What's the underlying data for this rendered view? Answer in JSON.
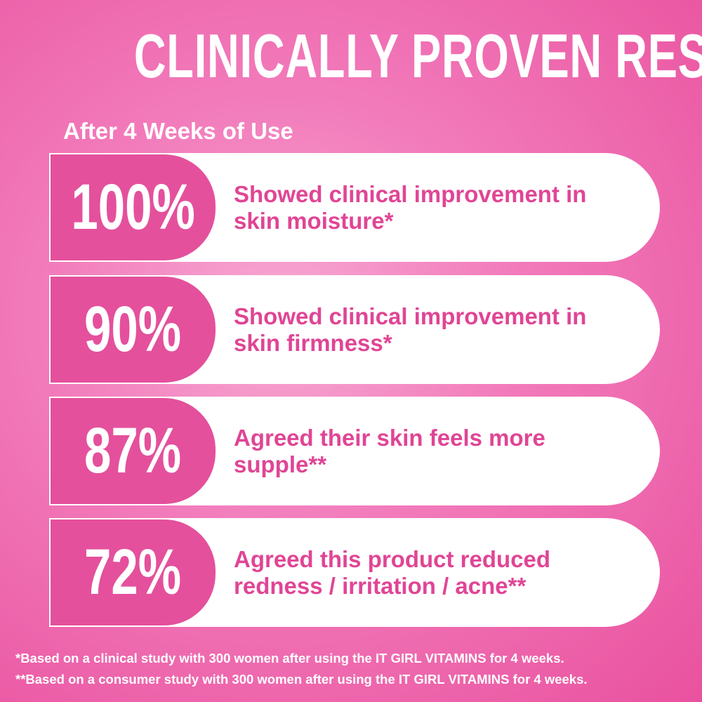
{
  "header": {
    "title": "CLINICALLY PROVEN RESULTS",
    "subtitle": "After 4 Weeks of Use"
  },
  "stats": [
    {
      "value": "100%",
      "text": "Showed clinical improvement in skin moisture*"
    },
    {
      "value": "90%",
      "text": "Showed clinical improvement in skin firmness*"
    },
    {
      "value": "87%",
      "text": "Agreed their skin feels more supple**"
    },
    {
      "value": "72%",
      "text": "Agreed this product reduced redness / irritation / acne**"
    }
  ],
  "footnotes": [
    "*Based on a clinical study with 300 women after using the IT GIRL VITAMINS for 4 weeks.",
    "**Based on a consumer study with 300 women after using the IT GIRL VITAMINS for 4 weeks."
  ]
}
